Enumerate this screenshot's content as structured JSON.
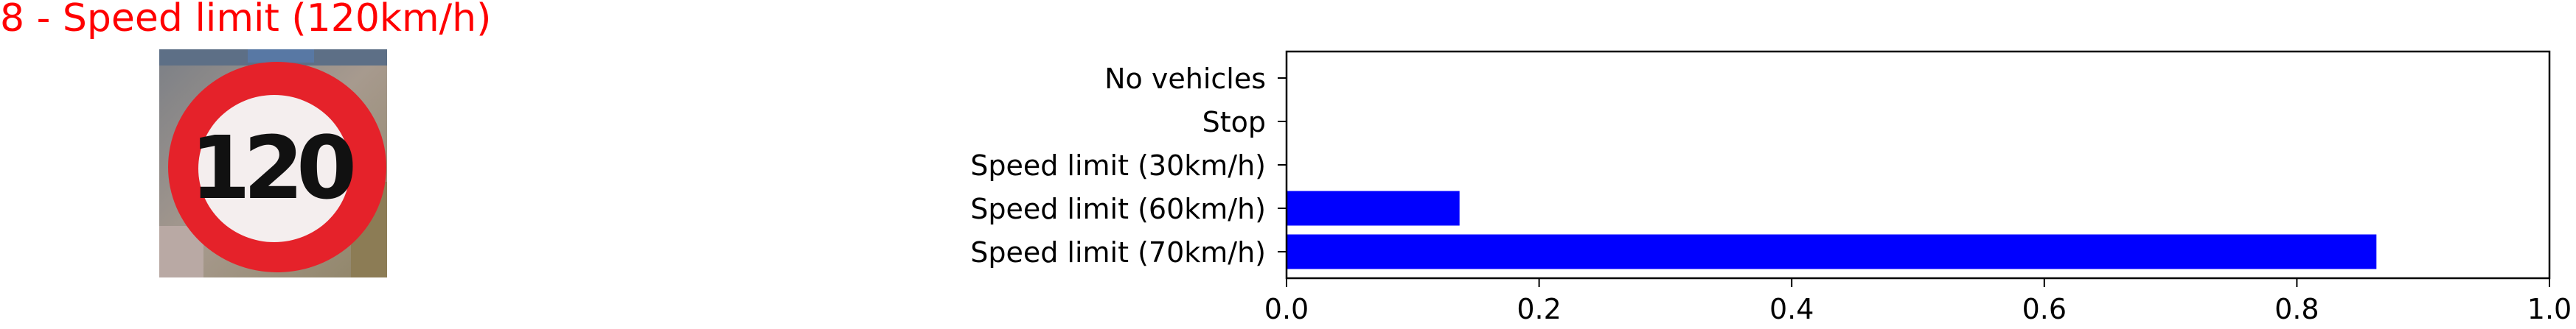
{
  "title": "8 - Speed limit (120km/h)",
  "colors": {
    "title": "#ff0000",
    "bar": "#0000ff",
    "axis": "#000000"
  },
  "image": {
    "description_icon": "speed-limit-120-sign",
    "sign_text": "120"
  },
  "chart_data": {
    "type": "bar",
    "orientation": "horizontal",
    "categories": [
      "Speed limit (70km/h)",
      "Speed limit (60km/h)",
      "Speed limit (30km/h)",
      "Stop",
      "No vehicles"
    ],
    "values": [
      0.863,
      0.137,
      0.0,
      0.0,
      0.0
    ],
    "xlim": [
      0,
      1.0
    ],
    "xticks": [
      "0.0",
      "0.2",
      "0.4",
      "0.6",
      "0.8",
      "1.0"
    ],
    "grid": false,
    "xlabel": "",
    "ylabel": ""
  }
}
